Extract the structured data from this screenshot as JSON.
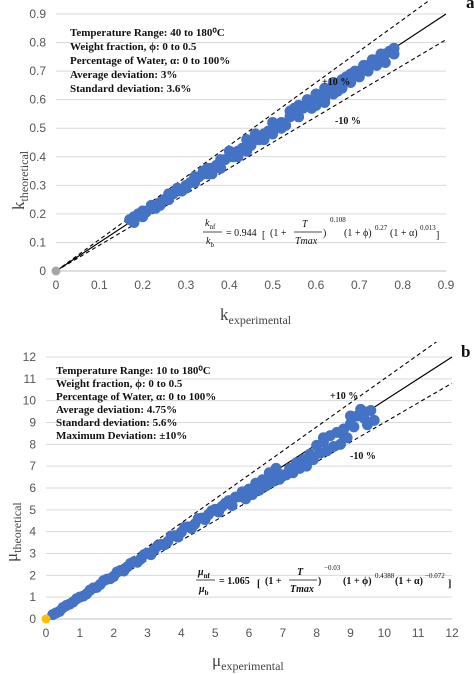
{
  "chart_data": [
    {
      "type": "scatter",
      "panel": "a",
      "xlabel_main": "k",
      "xlabel_sub": "experimental",
      "ylabel_main": "k",
      "ylabel_sub": "theoretical",
      "xlim": [
        0,
        0.9
      ],
      "ylim": [
        0,
        0.9
      ],
      "xticks": [
        "0",
        "0.1",
        "0.2",
        "0.3",
        "0.4",
        "0.5",
        "0.6",
        "0.7",
        "0.8",
        "0.9"
      ],
      "yticks": [
        "0",
        "0.1",
        "0.2",
        "0.3",
        "0.4",
        "0.5",
        "0.6",
        "0.7",
        "0.8",
        "0.9"
      ],
      "info_lines": [
        "Temperature Range: 40 to 180⁰C",
        "Weight fraction, ϕ: 0 to 0.5",
        "Percentage of Water, α: 0 to 100%",
        "Average deviation: 3%",
        "Standard deviation: 3.6%"
      ],
      "band_upper_label": "+10 %",
      "band_lower_label": "-10 %",
      "band_fraction": 0.1,
      "origin_point": [
        0,
        0
      ],
      "origin_color": "#a6a6a6",
      "equation": {
        "lhs_num": "k",
        "lhs_num_sub": "nf",
        "lhs_den": "k",
        "lhs_den_sub": "b",
        "coef": "= 0.944",
        "t1_open": "(1 +",
        "t1_num": "T",
        "t1_den": "Tmax",
        "t1_close": ")",
        "t1_exp": "0.108",
        "t2": "(1 + ϕ)",
        "t2_exp": "0.27",
        "t3": "(1 + α)",
        "t3_exp": "0.013"
      },
      "series": [
        {
          "color": "#4472c4",
          "points": [
            [
              0.17,
              0.18
            ],
            [
              0.18,
              0.17
            ],
            [
              0.19,
              0.2
            ],
            [
              0.2,
              0.19
            ],
            [
              0.21,
              0.21
            ],
            [
              0.22,
              0.22
            ],
            [
              0.23,
              0.22
            ],
            [
              0.24,
              0.24
            ],
            [
              0.25,
              0.25
            ],
            [
              0.26,
              0.25
            ],
            [
              0.27,
              0.27
            ],
            [
              0.28,
              0.28
            ],
            [
              0.29,
              0.28
            ],
            [
              0.3,
              0.3
            ],
            [
              0.31,
              0.31
            ],
            [
              0.32,
              0.31
            ],
            [
              0.33,
              0.33
            ],
            [
              0.34,
              0.34
            ],
            [
              0.35,
              0.34
            ],
            [
              0.36,
              0.36
            ],
            [
              0.37,
              0.37
            ],
            [
              0.38,
              0.36
            ],
            [
              0.39,
              0.39
            ],
            [
              0.4,
              0.4
            ],
            [
              0.41,
              0.4
            ],
            [
              0.42,
              0.42
            ],
            [
              0.43,
              0.43
            ],
            [
              0.44,
              0.42
            ],
            [
              0.45,
              0.45
            ],
            [
              0.46,
              0.46
            ],
            [
              0.47,
              0.46
            ],
            [
              0.48,
              0.48
            ],
            [
              0.49,
              0.49
            ],
            [
              0.5,
              0.48
            ],
            [
              0.51,
              0.51
            ],
            [
              0.52,
              0.52
            ],
            [
              0.53,
              0.51
            ],
            [
              0.54,
              0.54
            ],
            [
              0.55,
              0.55
            ],
            [
              0.56,
              0.54
            ],
            [
              0.57,
              0.57
            ],
            [
              0.58,
              0.58
            ],
            [
              0.59,
              0.57
            ],
            [
              0.6,
              0.6
            ],
            [
              0.61,
              0.61
            ],
            [
              0.62,
              0.6
            ],
            [
              0.63,
              0.63
            ],
            [
              0.64,
              0.64
            ],
            [
              0.65,
              0.63
            ],
            [
              0.66,
              0.67
            ],
            [
              0.67,
              0.68
            ],
            [
              0.68,
              0.69
            ],
            [
              0.69,
              0.7
            ],
            [
              0.7,
              0.7
            ],
            [
              0.71,
              0.72
            ],
            [
              0.72,
              0.72
            ],
            [
              0.73,
              0.74
            ],
            [
              0.74,
              0.74
            ],
            [
              0.75,
              0.76
            ],
            [
              0.76,
              0.76
            ],
            [
              0.77,
              0.77
            ],
            [
              0.78,
              0.78
            ],
            [
              0.78,
              0.76
            ],
            [
              0.76,
              0.73
            ],
            [
              0.74,
              0.72
            ],
            [
              0.72,
              0.7
            ],
            [
              0.7,
              0.68
            ],
            [
              0.68,
              0.66
            ],
            [
              0.66,
              0.64
            ],
            [
              0.64,
              0.66
            ],
            [
              0.62,
              0.64
            ],
            [
              0.6,
              0.62
            ],
            [
              0.58,
              0.6
            ],
            [
              0.56,
              0.58
            ],
            [
              0.54,
              0.56
            ],
            [
              0.52,
              0.5
            ],
            [
              0.5,
              0.52
            ],
            [
              0.48,
              0.46
            ],
            [
              0.46,
              0.48
            ],
            [
              0.44,
              0.46
            ],
            [
              0.42,
              0.4
            ],
            [
              0.4,
              0.42
            ],
            [
              0.38,
              0.39
            ],
            [
              0.36,
              0.34
            ],
            [
              0.34,
              0.35
            ],
            [
              0.32,
              0.33
            ],
            [
              0.3,
              0.29
            ],
            [
              0.28,
              0.29
            ],
            [
              0.26,
              0.27
            ],
            [
              0.24,
              0.23
            ],
            [
              0.22,
              0.23
            ],
            [
              0.2,
              0.21
            ],
            [
              0.18,
              0.19
            ],
            [
              0.6,
              0.58
            ],
            [
              0.62,
              0.59
            ],
            [
              0.64,
              0.62
            ],
            [
              0.66,
              0.65
            ],
            [
              0.55,
              0.57
            ],
            [
              0.45,
              0.44
            ],
            [
              0.35,
              0.36
            ]
          ]
        }
      ]
    },
    {
      "type": "scatter",
      "panel": "b",
      "xlabel_main": "μ",
      "xlabel_sub": "experimental",
      "ylabel_main": "μ",
      "ylabel_sub": "theoretical",
      "xlim": [
        0,
        12
      ],
      "ylim": [
        0,
        12
      ],
      "xticks": [
        "0",
        "1",
        "2",
        "3",
        "4",
        "5",
        "6",
        "7",
        "8",
        "9",
        "10",
        "11",
        "12"
      ],
      "yticks": [
        "0",
        "1",
        "2",
        "3",
        "4",
        "5",
        "6",
        "7",
        "8",
        "9",
        "10",
        "11",
        "12"
      ],
      "info_lines": [
        "Temperature Range: 10 to 180⁰C",
        "Weight fraction, ϕ: 0 to 0.5",
        "Percentage of Water, α: 0 to 100%",
        "Average deviation: 4.75%",
        "Standard deviation: 5.6%",
        "Maximum Deviation: ±10%"
      ],
      "band_upper_label": "+10 %",
      "band_lower_label": "-10 %",
      "band_fraction": 0.1,
      "origin_point": [
        0,
        0
      ],
      "origin_color": "#ffc000",
      "equation": {
        "lhs_num": "μ",
        "lhs_num_sub": "nf",
        "lhs_den": "μ",
        "lhs_den_sub": "b",
        "coef": "= 1.065",
        "t1_open": "(1 +",
        "t1_num": "T",
        "t1_den": "Tmax",
        "t1_close": ")",
        "t1_exp": "−0.03",
        "t2": "(1 + ϕ)",
        "t2_exp": "0.4388",
        "t3": "(1 + α)",
        "t3_exp": "−0.072"
      },
      "series": [
        {
          "color": "#4472c4",
          "points": [
            [
              0.2,
              0.2
            ],
            [
              0.4,
              0.35
            ],
            [
              0.6,
              0.62
            ],
            [
              0.8,
              0.78
            ],
            [
              1.0,
              1.0
            ],
            [
              1.2,
              1.15
            ],
            [
              1.4,
              1.42
            ],
            [
              1.6,
              1.58
            ],
            [
              1.8,
              1.82
            ],
            [
              2.0,
              1.95
            ],
            [
              2.2,
              2.22
            ],
            [
              2.4,
              2.38
            ],
            [
              2.6,
              2.62
            ],
            [
              2.8,
              2.75
            ],
            [
              3.0,
              3.02
            ],
            [
              3.2,
              3.18
            ],
            [
              3.4,
              3.42
            ],
            [
              3.6,
              3.55
            ],
            [
              3.8,
              3.82
            ],
            [
              4.0,
              3.98
            ],
            [
              4.2,
              4.22
            ],
            [
              4.4,
              4.35
            ],
            [
              4.6,
              4.62
            ],
            [
              4.8,
              4.78
            ],
            [
              5.0,
              5.02
            ],
            [
              5.2,
              5.15
            ],
            [
              5.4,
              5.42
            ],
            [
              5.6,
              5.58
            ],
            [
              5.8,
              5.82
            ],
            [
              6.0,
              5.95
            ],
            [
              6.2,
              6.22
            ],
            [
              6.4,
              6.38
            ],
            [
              6.6,
              6.55
            ],
            [
              6.8,
              6.75
            ],
            [
              7.0,
              6.6
            ],
            [
              7.2,
              6.9
            ],
            [
              7.4,
              7.15
            ],
            [
              7.6,
              7.3
            ],
            [
              7.8,
              7.55
            ],
            [
              8.0,
              7.95
            ],
            [
              8.2,
              8.1
            ],
            [
              8.4,
              8.4
            ],
            [
              8.6,
              8.55
            ],
            [
              8.8,
              8.7
            ],
            [
              9.0,
              8.95
            ],
            [
              9.2,
              9.3
            ],
            [
              9.4,
              9.5
            ],
            [
              9.6,
              9.55
            ],
            [
              9.7,
              9.1
            ],
            [
              9.5,
              8.9
            ],
            [
              9.3,
              9.6
            ],
            [
              9.1,
              8.8
            ],
            [
              8.9,
              8.3
            ],
            [
              8.7,
              8.0
            ],
            [
              8.5,
              7.9
            ],
            [
              8.3,
              7.7
            ],
            [
              8.1,
              7.6
            ],
            [
              7.9,
              7.3
            ],
            [
              7.7,
              7.0
            ],
            [
              7.5,
              6.9
            ],
            [
              7.3,
              6.7
            ],
            [
              7.1,
              6.6
            ],
            [
              6.9,
              6.4
            ],
            [
              6.7,
              6.3
            ],
            [
              6.5,
              6.1
            ],
            [
              6.3,
              5.9
            ],
            [
              6.1,
              5.7
            ],
            [
              5.9,
              5.5
            ],
            [
              5.7,
              5.6
            ],
            [
              5.5,
              5.2
            ],
            [
              5.3,
              5.3
            ],
            [
              5.1,
              4.9
            ],
            [
              4.9,
              4.95
            ],
            [
              4.7,
              4.55
            ],
            [
              4.5,
              4.6
            ],
            [
              4.3,
              4.15
            ],
            [
              4.1,
              4.2
            ],
            [
              3.9,
              3.75
            ],
            [
              3.7,
              3.8
            ],
            [
              3.5,
              3.4
            ],
            [
              3.3,
              3.35
            ],
            [
              3.1,
              2.95
            ],
            [
              2.9,
              2.95
            ],
            [
              2.7,
              2.6
            ],
            [
              2.5,
              2.55
            ],
            [
              2.3,
              2.2
            ],
            [
              2.1,
              2.15
            ],
            [
              1.9,
              1.85
            ],
            [
              1.7,
              1.75
            ],
            [
              1.5,
              1.45
            ],
            [
              1.3,
              1.32
            ],
            [
              1.1,
              1.05
            ],
            [
              0.9,
              0.92
            ],
            [
              0.7,
              0.68
            ],
            [
              0.5,
              0.52
            ],
            [
              0.3,
              0.28
            ],
            [
              8.2,
              8.3
            ],
            [
              8.8,
              8.4
            ],
            [
              9.4,
              9.2
            ],
            [
              9.0,
              9.3
            ],
            [
              6.6,
              6.7
            ],
            [
              6.8,
              6.9
            ]
          ]
        }
      ]
    }
  ]
}
